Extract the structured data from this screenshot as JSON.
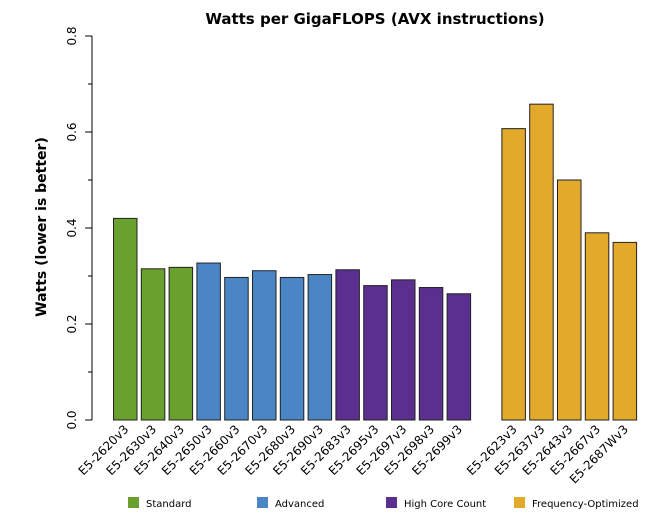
{
  "chart_data": {
    "type": "bar",
    "title": "Watts per GigaFLOPS (AVX instructions)",
    "xlabel": "",
    "ylabel": "Watts (lower is better)",
    "ylim": [
      0,
      0.8
    ],
    "yticks": [
      "0.0",
      "0.2",
      "0.4",
      "0.6",
      "0.8"
    ],
    "ytick_values": [
      0,
      0.2,
      0.4,
      0.6,
      0.8
    ],
    "categories": [
      "E5-2620v3",
      "E5-2630v3",
      "E5-2640v3",
      "E5-2650v3",
      "E5-2660v3",
      "E5-2670v3",
      "E5-2680v3",
      "E5-2690v3",
      "E5-2683v3",
      "E5-2695v3",
      "E5-2697v3",
      "E5-2698v3",
      "E5-2699v3",
      "E5-2623v3",
      "E5-2637v3",
      "E5-2643v3",
      "E5-2667v3",
      "E5-2687Wv3"
    ],
    "values": [
      0.42,
      0.315,
      0.318,
      0.327,
      0.297,
      0.311,
      0.297,
      0.303,
      0.313,
      0.28,
      0.292,
      0.276,
      0.263,
      0.607,
      0.658,
      0.5,
      0.39,
      0.37
    ],
    "groups": [
      "Standard",
      "Standard",
      "Standard",
      "Advanced",
      "Advanced",
      "Advanced",
      "Advanced",
      "Advanced",
      "High Core Count",
      "High Core Count",
      "High Core Count",
      "High Core Count",
      "High Core Count",
      "Frequency-Optimized",
      "Frequency-Optimized",
      "Frequency-Optimized",
      "Frequency-Optimized",
      "Frequency-Optimized"
    ],
    "legend": [
      {
        "label": "Standard",
        "color": "#6aa12e"
      },
      {
        "label": "Advanced",
        "color": "#4a86c6"
      },
      {
        "label": "High Core Count",
        "color": "#5b2f8f"
      },
      {
        "label": "Frequency-Optimized",
        "color": "#e2a92a"
      }
    ],
    "legend_position": "bottom",
    "grid": false
  }
}
